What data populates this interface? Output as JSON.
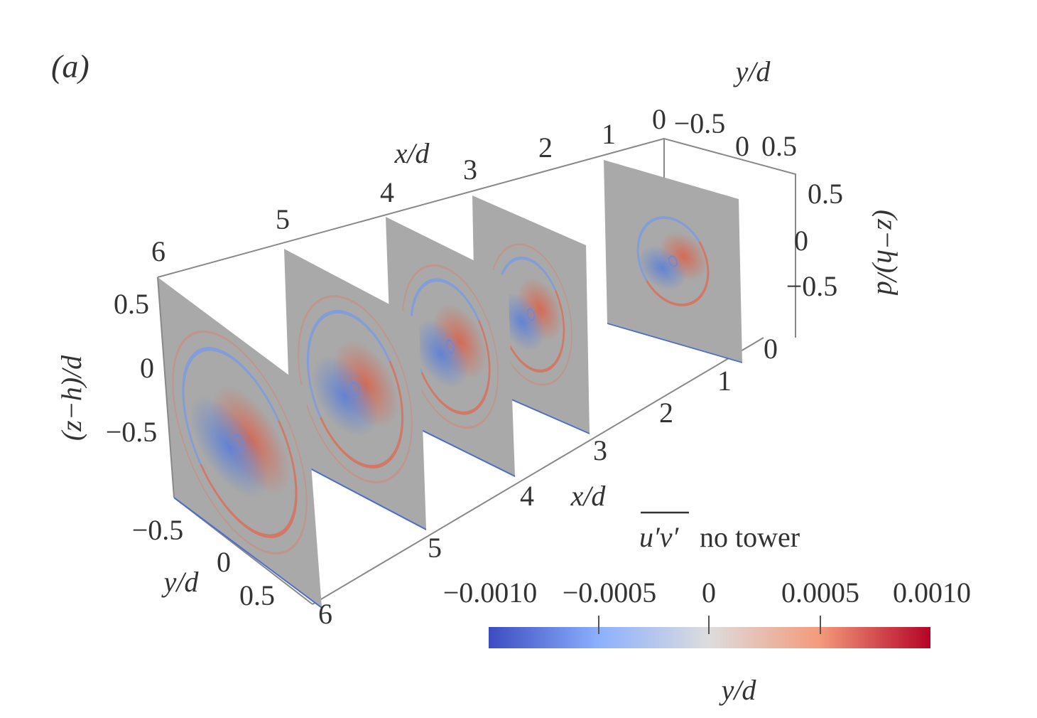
{
  "panel_label": "(a)",
  "axes": {
    "x_top": {
      "label": "x/d",
      "ticks": [
        "0",
        "1",
        "2",
        "3",
        "4",
        "5",
        "6"
      ]
    },
    "x_bottom": {
      "label": "x/d",
      "ticks": [
        "0",
        "1",
        "2",
        "3",
        "4",
        "5",
        "6"
      ]
    },
    "y_top": {
      "label": "y/d",
      "ticks": [
        "−0.5",
        "0",
        "0.5"
      ]
    },
    "y_bottom": {
      "label": "y/d",
      "ticks": [
        "−0.5",
        "0",
        "0.5"
      ]
    },
    "z_left": {
      "label": "(z−h)/d",
      "ticks": [
        "0.5",
        "0",
        "−0.5"
      ]
    },
    "z_right": {
      "label": "(z−h)/d",
      "ticks": [
        "0.5",
        "0",
        "−0.5"
      ]
    }
  },
  "colorbar": {
    "variable": "u′v′",
    "caption": "no tower",
    "ticks": [
      "−0.0010",
      "−0.0005",
      "0",
      "0.0005",
      "0.0010"
    ]
  },
  "footer_label": "y/d"
}
